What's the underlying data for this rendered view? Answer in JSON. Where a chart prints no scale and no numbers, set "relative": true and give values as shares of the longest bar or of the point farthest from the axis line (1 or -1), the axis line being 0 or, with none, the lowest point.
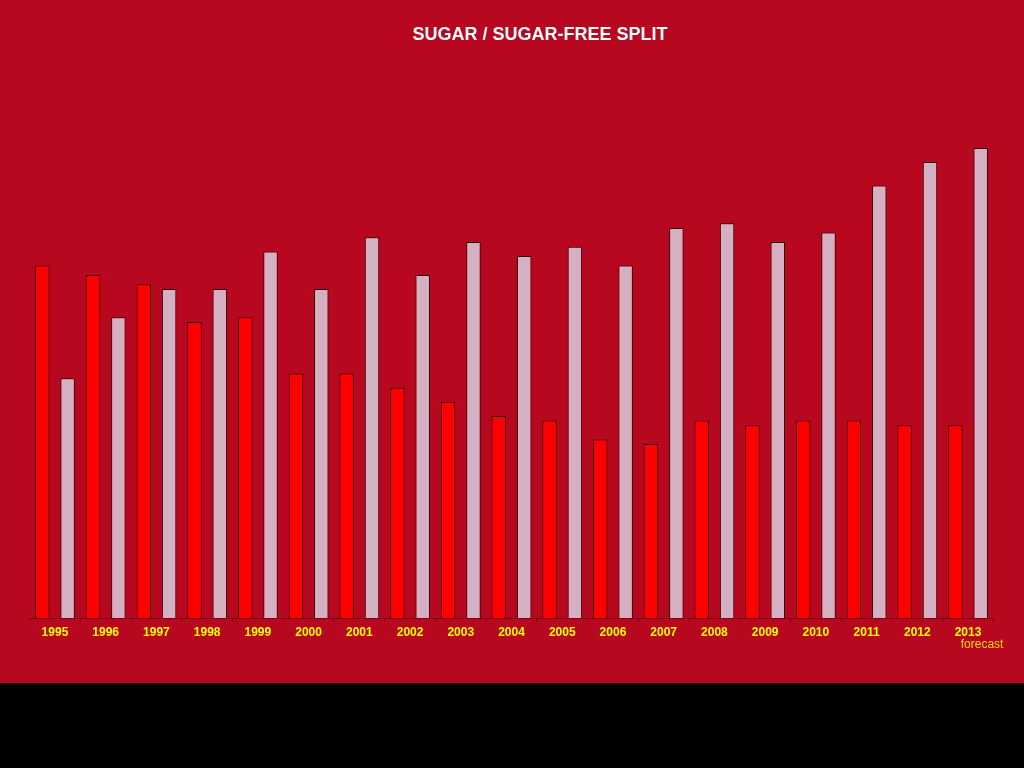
{
  "chart_data": {
    "type": "bar",
    "title": "SUGAR / SUGAR-FREE SPLIT",
    "categories": [
      "1995",
      "1996",
      "1997",
      "1998",
      "1999",
      "2000",
      "2001",
      "2002",
      "2003",
      "2004",
      "2005",
      "2006",
      "2007",
      "2008",
      "2009",
      "2010",
      "2011",
      "2012",
      "2013"
    ],
    "series": [
      {
        "color": "#ff0000",
        "values": [
          0.75,
          0.73,
          0.71,
          0.63,
          0.64,
          0.52,
          0.52,
          0.49,
          0.46,
          0.43,
          0.42,
          0.38,
          0.37,
          0.42,
          0.41,
          0.42,
          0.42,
          0.41,
          0.41
        ]
      },
      {
        "color": "#d4b0c2",
        "values": [
          0.51,
          0.64,
          0.7,
          0.7,
          0.78,
          0.7,
          0.81,
          0.73,
          0.8,
          0.77,
          0.79,
          0.75,
          0.83,
          0.84,
          0.8,
          0.82,
          0.92,
          0.97,
          1
        ]
      }
    ],
    "relative": true,
    "annotations": [
      "forecast"
    ]
  }
}
